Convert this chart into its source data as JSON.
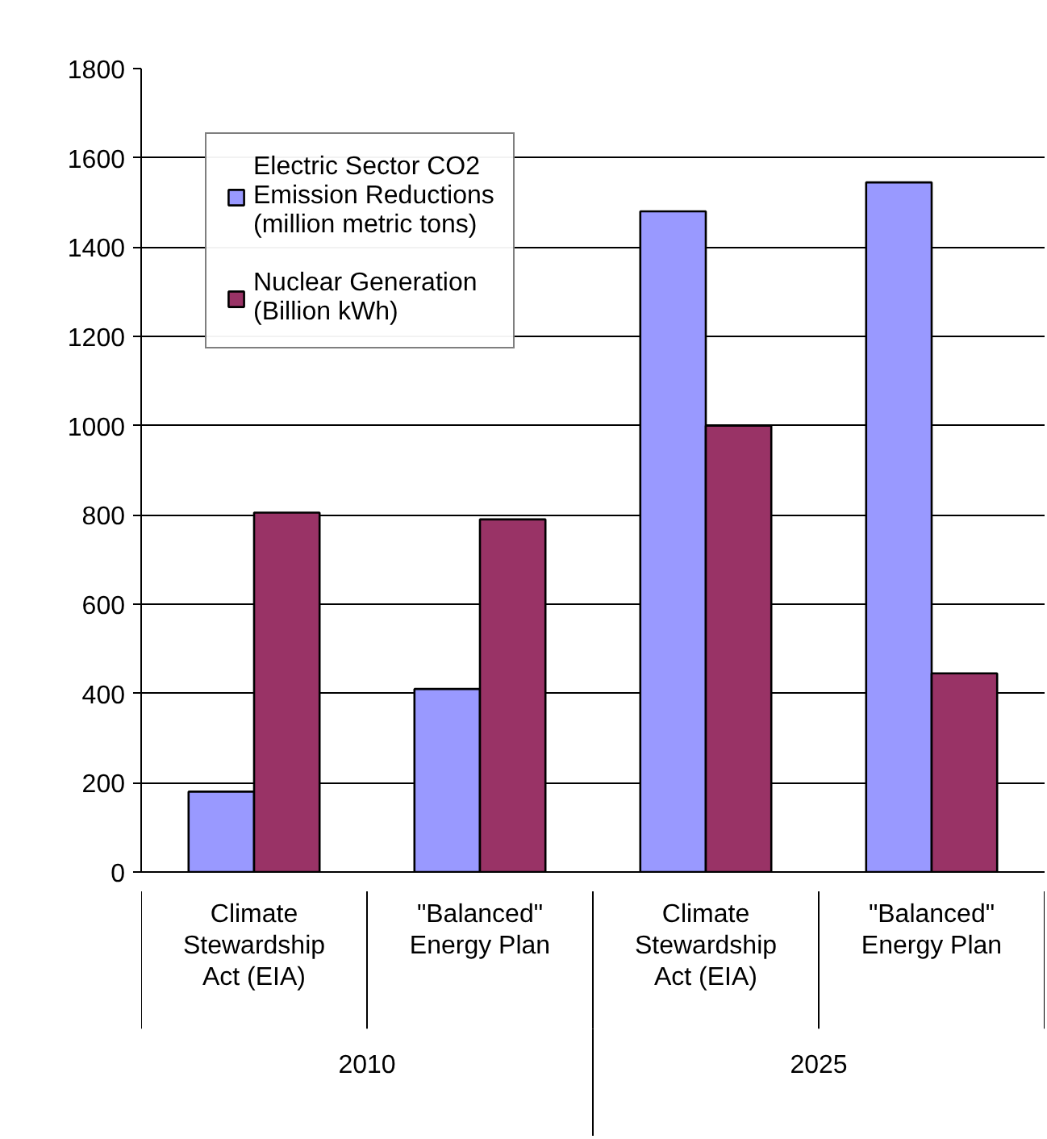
{
  "chart_data": {
    "type": "bar",
    "categories": [
      "Climate Stewardship Act (EIA)",
      "\"Balanced\" Energy Plan",
      "Climate Stewardship Act (EIA)",
      "\"Balanced\" Energy Plan"
    ],
    "series": [
      {
        "name": "Electric Sector CO2 Emission Reductions (million metric tons)",
        "color": "#9999ff",
        "values": [
          180,
          410,
          1480,
          1545
        ]
      },
      {
        "name": "Nuclear Generation (Billion kWh)",
        "color": "#993366",
        "values": [
          805,
          790,
          1000,
          445
        ]
      }
    ],
    "annotations": [
      "2010",
      "2025"
    ],
    "ylim": [
      0,
      1800
    ],
    "yticks": [
      0,
      200,
      400,
      600,
      800,
      1000,
      1200,
      1400,
      1600,
      1800
    ],
    "grid": "y",
    "legend": "top left"
  }
}
